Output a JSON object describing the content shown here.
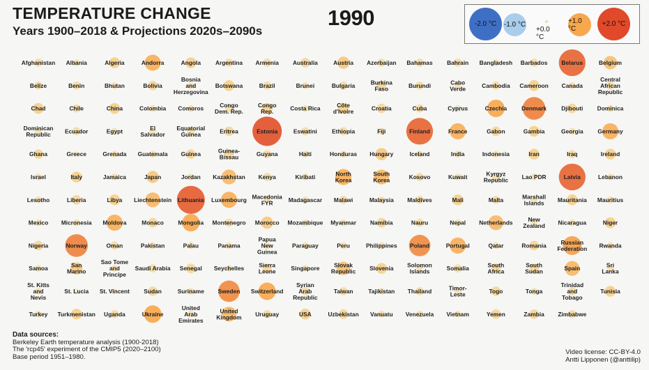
{
  "header": {
    "title": "TEMPERATURE CHANGE",
    "subtitle": "Years 1900–2018 & Projections 2020s–2090s",
    "year": "1990"
  },
  "legend": {
    "items": [
      {
        "label": "-2.0 °C",
        "value": -2.0,
        "color": "#3f6fc5"
      },
      {
        "label": "-1.0 °C",
        "value": -1.0,
        "color": "#a9cdea"
      },
      {
        "label": "+0.0 °C",
        "value": 0.0,
        "color": "#f2eccd"
      },
      {
        "label": "+1.0 °C",
        "value": 1.0,
        "color": "#f7a74c"
      },
      {
        "label": "+2.0 °C",
        "value": 2.0,
        "color": "#e04a2a"
      }
    ]
  },
  "chart_data": {
    "type": "bubble-grid",
    "title": "TEMPERATURE CHANGE",
    "subtitle": "Years 1900–2018 & Projections 2020s–2090s",
    "year": "1990",
    "unit": "°C anomaly vs 1951–1980",
    "countries": [
      [
        [
          "Afghanistan",
          0.3
        ],
        [
          "Albania",
          0.2
        ],
        [
          "Algeria",
          0.5
        ],
        [
          "Andorra",
          0.9
        ],
        [
          "Angola",
          0.5
        ],
        [
          "Argentina",
          0.3
        ],
        [
          "Armenia",
          0.3
        ],
        [
          "Australia",
          0.4
        ],
        [
          "Austria",
          0.6
        ],
        [
          "Azerbaijan",
          0.3
        ],
        [
          "Bahamas",
          0.3
        ],
        [
          "Bahrain",
          0.3
        ],
        [
          "Bangladesh",
          0.2
        ],
        [
          "Barbados",
          0.3
        ],
        [
          "Belarus",
          1.7
        ],
        [
          "Belgium",
          0.7
        ]
      ],
      [
        [
          "Belize",
          0.3
        ],
        [
          "Benin",
          0.3
        ],
        [
          "Bhutan",
          0.2
        ],
        [
          "Bolivia",
          0.4
        ],
        [
          "Bosnia and Herzegovina",
          0.2
        ],
        [
          "Botswana",
          0.5
        ],
        [
          "Brazil",
          0.3
        ],
        [
          "Brunei",
          0.2
        ],
        [
          "Bulgaria",
          0.3
        ],
        [
          "Burkina Faso",
          0.4
        ],
        [
          "Burundi",
          0.3
        ],
        [
          "Cabo Verde",
          0.2
        ],
        [
          "Cambodia",
          0.3
        ],
        [
          "Cameroon",
          0.5
        ],
        [
          "Canada",
          0.2
        ],
        [
          "Central African Republic",
          0.3
        ]
      ],
      [
        [
          "Chad",
          0.5
        ],
        [
          "Chile",
          0.3
        ],
        [
          "China",
          0.5
        ],
        [
          "Colombia",
          0.2
        ],
        [
          "Comoros",
          0.2
        ],
        [
          "Congo Dem. Rep.",
          0.3
        ],
        [
          "Congo Rep.",
          0.5
        ],
        [
          "Costa Rica",
          0.2
        ],
        [
          "Côte d'Ivoire",
          0.5
        ],
        [
          "Croatia",
          0.4
        ],
        [
          "Cuba",
          0.3
        ],
        [
          "Cyprus",
          -0.2
        ],
        [
          "Czechia",
          1.0
        ],
        [
          "Denmark",
          1.4
        ],
        [
          "Djibouti",
          0.4
        ],
        [
          "Dominica",
          0.2
        ]
      ],
      [
        [
          "Dominican Republic",
          0.2
        ],
        [
          "Ecuador",
          0.3
        ],
        [
          "Egypt",
          0.2
        ],
        [
          "El Salvador",
          0.2
        ],
        [
          "Equatorial Guinea",
          0.3
        ],
        [
          "Eritrea",
          0.4
        ],
        [
          "Estonia",
          1.9
        ],
        [
          "Eswatini",
          0.3
        ],
        [
          "Ethiopia",
          0.3
        ],
        [
          "Fiji",
          0.2
        ],
        [
          "Finland",
          1.7
        ],
        [
          "France",
          0.9
        ],
        [
          "Gabon",
          0.4
        ],
        [
          "Gambia",
          0.5
        ],
        [
          "Georgia",
          0.2
        ],
        [
          "Germany",
          0.9
        ]
      ],
      [
        [
          "Ghana",
          0.4
        ],
        [
          "Greece",
          0.1
        ],
        [
          "Grenada",
          0.2
        ],
        [
          "Guatemala",
          0.2
        ],
        [
          "Guinea",
          0.4
        ],
        [
          "Guinea-Bissau",
          0.4
        ],
        [
          "Guyana",
          0.3
        ],
        [
          "Haiti",
          0.2
        ],
        [
          "Honduras",
          0.2
        ],
        [
          "Hungary",
          0.6
        ],
        [
          "Iceland",
          0.2
        ],
        [
          "India",
          0.2
        ],
        [
          "Indonesia",
          0.2
        ],
        [
          "Iran",
          0.5
        ],
        [
          "Iraq",
          0.3
        ],
        [
          "Ireland",
          0.5
        ]
      ],
      [
        [
          "Israel",
          0.2
        ],
        [
          "Italy",
          0.5
        ],
        [
          "Jamaica",
          0.2
        ],
        [
          "Japan",
          0.6
        ],
        [
          "Jordan",
          0.2
        ],
        [
          "Kazakhstan",
          0.8
        ],
        [
          "Kenya",
          0.3
        ],
        [
          "Kiribati",
          0.2
        ],
        [
          "North Korea",
          0.9
        ],
        [
          "South Korea",
          0.8
        ],
        [
          "Kosovo",
          0.3
        ],
        [
          "Kuwait",
          0.2
        ],
        [
          "Kyrgyz Republic",
          0.3
        ],
        [
          "Lao PDR",
          0.2
        ],
        [
          "Latvia",
          1.7
        ],
        [
          "Lebanon",
          0.2
        ]
      ],
      [
        [
          "Lesotho",
          0.2
        ],
        [
          "Liberia",
          0.4
        ],
        [
          "Libya",
          0.5
        ],
        [
          "Liechtenstein",
          0.8
        ],
        [
          "Lithuania",
          1.8
        ],
        [
          "Luxembourg",
          0.9
        ],
        [
          "Macedonia FYR",
          0.2
        ],
        [
          "Madagascar",
          0.2
        ],
        [
          "Malawi",
          0.3
        ],
        [
          "Malaysia",
          0.2
        ],
        [
          "Maldives",
          0.3
        ],
        [
          "Mali",
          0.5
        ],
        [
          "Malta",
          0.3
        ],
        [
          "Marshall Islands",
          0.2
        ],
        [
          "Mauritania",
          0.5
        ],
        [
          "Mauritius",
          0.2
        ]
      ],
      [
        [
          "Mexico",
          0.2
        ],
        [
          "Micronesia",
          0.2
        ],
        [
          "Moldova",
          0.9
        ],
        [
          "Monaco",
          0.4
        ],
        [
          "Mongolia",
          1.0
        ],
        [
          "Montenegro",
          0.3
        ],
        [
          "Morocco",
          0.6
        ],
        [
          "Mozambique",
          0.2
        ],
        [
          "Myanmar",
          0.2
        ],
        [
          "Namibia",
          0.4
        ],
        [
          "Nauru",
          0.3
        ],
        [
          "Nepal",
          0.2
        ],
        [
          "Netherlands",
          0.8
        ],
        [
          "New Zealand",
          0.2
        ],
        [
          "Nicaragua",
          0.2
        ],
        [
          "Niger",
          0.5
        ]
      ],
      [
        [
          "Nigeria",
          0.4
        ],
        [
          "Norway",
          1.4
        ],
        [
          "Oman",
          0.3
        ],
        [
          "Pakistan",
          0.2
        ],
        [
          "Palau",
          0.2
        ],
        [
          "Panama",
          0.2
        ],
        [
          "Papua New Guinea",
          0.2
        ],
        [
          "Paraguay",
          0.2
        ],
        [
          "Peru",
          0.2
        ],
        [
          "Philippines",
          0.2
        ],
        [
          "Poland",
          1.3
        ],
        [
          "Portugal",
          0.9
        ],
        [
          "Qatar",
          0.2
        ],
        [
          "Romania",
          0.4
        ],
        [
          "Russian Federation",
          1.1
        ],
        [
          "Rwanda",
          0.2
        ]
      ],
      [
        [
          "Samoa",
          0.2
        ],
        [
          "San Marino",
          0.6
        ],
        [
          "Sao Tome and Principe",
          0.2
        ],
        [
          "Saudi Arabia",
          0.3
        ],
        [
          "Senegal",
          0.4
        ],
        [
          "Seychelles",
          0.2
        ],
        [
          "Sierra Leone",
          0.4
        ],
        [
          "Singapore",
          0.2
        ],
        [
          "Slovak Republic",
          0.7
        ],
        [
          "Slovenia",
          0.5
        ],
        [
          "Solomon Islands",
          0.2
        ],
        [
          "Somalia",
          0.3
        ],
        [
          "South Africa",
          0.4
        ],
        [
          "South Sudan",
          0.4
        ],
        [
          "Spain",
          0.8
        ],
        [
          "Sri Lanka",
          0.2
        ]
      ],
      [
        [
          "St. Kitts and Nevis",
          0.2
        ],
        [
          "St. Lucia",
          -0.1
        ],
        [
          "St. Vincent",
          0.1
        ],
        [
          "Sudan",
          0.4
        ],
        [
          "Suriname",
          0.2
        ],
        [
          "Sweden",
          1.3
        ],
        [
          "Switzerland",
          1.0
        ],
        [
          "Syrian Arab Republic",
          0.3
        ],
        [
          "Taiwan",
          0.3
        ],
        [
          "Tajikistan",
          0.2
        ],
        [
          "Thailand",
          0.3
        ],
        [
          "Timor-Leste",
          0.2
        ],
        [
          "Togo",
          0.4
        ],
        [
          "Tonga",
          0.2
        ],
        [
          "Trinidad and Tobago",
          0.3
        ],
        [
          "Tunisia",
          0.5
        ]
      ],
      [
        [
          "Turkey",
          0.2
        ],
        [
          "Turkmenistan",
          0.5
        ],
        [
          "Uganda",
          0.3
        ],
        [
          "Ukraine",
          1.0
        ],
        [
          "United Arab Emirates",
          0.2
        ],
        [
          "United Kingdom",
          0.8
        ],
        [
          "Uruguay",
          0.3
        ],
        [
          "USA",
          0.5
        ],
        [
          "Uzbekistan",
          0.4
        ],
        [
          "Vanuatu",
          0.2
        ],
        [
          "Venezuela",
          0.2
        ],
        [
          "Vietnam",
          0.2
        ],
        [
          "Yemen",
          0.4
        ],
        [
          "Zambia",
          0.4
        ],
        [
          "Zimbabwe",
          0.3
        ]
      ]
    ],
    "labels": {
      "Bosnia and Herzegovina": [
        "Bosnia",
        "and",
        "Herzegovina"
      ],
      "Burkina Faso": [
        "Burkina",
        "Faso"
      ],
      "Cabo Verde": [
        "Cabo",
        "Verde"
      ],
      "Central African Republic": [
        "Central",
        "African",
        "Republic"
      ],
      "Congo Dem. Rep.": [
        "Congo",
        "Dem. Rep."
      ],
      "Congo Rep.": [
        "Congo",
        "Rep."
      ],
      "Côte d'Ivoire": [
        "Côte",
        "d'Ivoire"
      ],
      "Dominican Republic": [
        "Dominican",
        "Republic"
      ],
      "El Salvador": [
        "El",
        "Salvador"
      ],
      "Equatorial Guinea": [
        "Equatorial",
        "Guinea"
      ],
      "Guinea-Bissau": [
        "Guinea-",
        "Bissau"
      ],
      "North Korea": [
        "North",
        "Korea"
      ],
      "South Korea": [
        "South",
        "Korea"
      ],
      "Kyrgyz Republic": [
        "Kyrgyz",
        "Republic"
      ],
      "Macedonia FYR": [
        "Macedonia",
        "FYR"
      ],
      "Marshall Islands": [
        "Marshall",
        "Islands"
      ],
      "New Zealand": [
        "New",
        "Zealand"
      ],
      "Papua New Guinea": [
        "Papua",
        "New",
        "Guinea"
      ],
      "Russian Federation": [
        "Russian",
        "Federation"
      ],
      "San Marino": [
        "San",
        "Marino"
      ],
      "Sao Tome and Principe": [
        "Sao Tome",
        "and",
        "Principe"
      ],
      "Sierra Leone": [
        "Sierra",
        "Leone"
      ],
      "Slovak Republic": [
        "Slovak",
        "Republic"
      ],
      "Solomon Islands": [
        "Solomon",
        "Islands"
      ],
      "South Africa": [
        "South",
        "Africa"
      ],
      "South Sudan": [
        "South",
        "Sudan"
      ],
      "Sri Lanka": [
        "Sri",
        "Lanka"
      ],
      "St. Kitts and Nevis": [
        "St. Kitts",
        "and",
        "Nevis"
      ],
      "Syrian Arab Republic": [
        "Syrian",
        "Arab",
        "Republic"
      ],
      "Timor-Leste": [
        "Timor-",
        "Leste"
      ],
      "Trinidad and Tobago": [
        "Trinidad",
        "and",
        "Tobago"
      ],
      "United Arab Emirates": [
        "United",
        "Arab",
        "Emirates"
      ],
      "United Kingdom": [
        "United",
        "Kingdom"
      ]
    }
  },
  "footer": {
    "sources_heading": "Data sources:",
    "source_1": "Berkeley Earth temperature analysis (1900-2018)",
    "source_2": "The 'rcp45' experiment of the CMIP5 (2020–2100)",
    "source_3": "Base period 1951–1980.",
    "license": "Video license: CC-BY-4.0",
    "author": "Antti Lipponen (@anttilip)"
  }
}
